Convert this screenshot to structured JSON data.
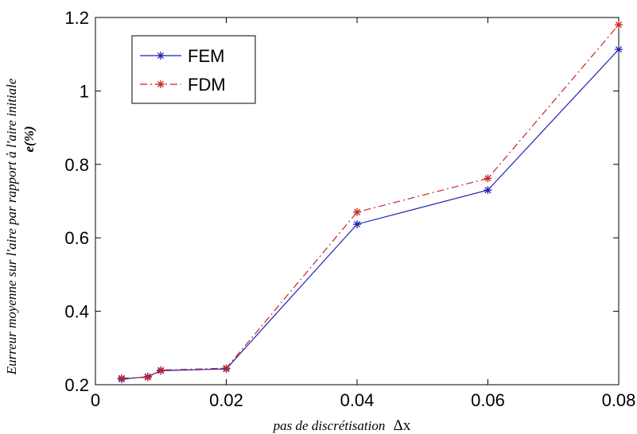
{
  "chart_data": {
    "type": "line",
    "xlabel": "pas de discrétisation",
    "xlabel_symbol": "Δx",
    "ylabel": "Eurreur moyenne sur l'aire par rapport à l'aire initiale",
    "ylabel_sub": "e(%)",
    "xlim": [
      0,
      0.08
    ],
    "ylim": [
      0.2,
      1.2
    ],
    "xticks": [
      0,
      0.02,
      0.04,
      0.06,
      0.08
    ],
    "xtick_labels": [
      "0",
      "0.02",
      "0.04",
      "0.06",
      "0.08"
    ],
    "yticks": [
      0.2,
      0.4,
      0.6,
      0.8,
      1.0,
      1.2
    ],
    "ytick_labels": [
      "0.2",
      "0.4",
      "0.6",
      "0.8",
      "1",
      "1.2"
    ],
    "grid": false,
    "legend_position": "top-left",
    "series": [
      {
        "name": "FEM",
        "color": "#1f1fb4",
        "line_style": "solid",
        "marker": "asterisk",
        "x": [
          0.004,
          0.008,
          0.01,
          0.02,
          0.04,
          0.06,
          0.08
        ],
        "y": [
          0.215,
          0.222,
          0.238,
          0.243,
          0.637,
          0.73,
          1.113
        ]
      },
      {
        "name": "FDM",
        "color": "#cc2222",
        "line_style": "dashdot",
        "marker": "asterisk",
        "x": [
          0.004,
          0.008,
          0.01,
          0.02,
          0.04,
          0.06,
          0.08
        ],
        "y": [
          0.218,
          0.22,
          0.24,
          0.245,
          0.67,
          0.762,
          1.18
        ]
      }
    ]
  }
}
